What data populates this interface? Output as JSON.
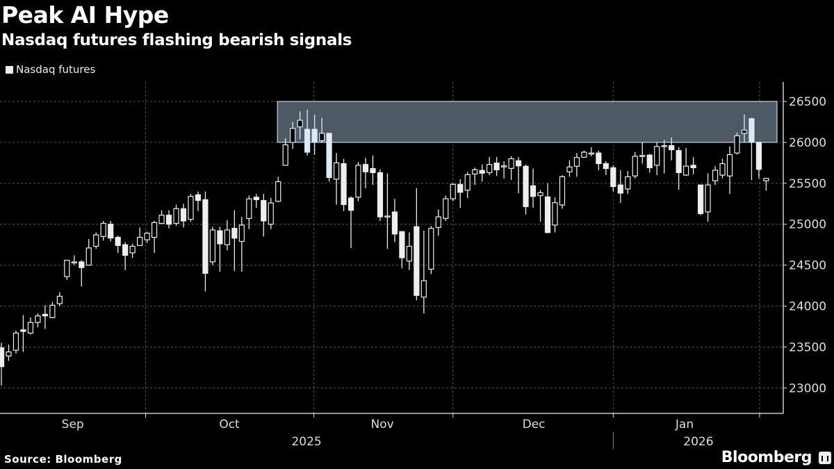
{
  "header": {
    "title": "Peak AI Hype",
    "subtitle": "Nasdaq futures flashing bearish signals"
  },
  "legend": {
    "label": "Nasdaq futures"
  },
  "footer": {
    "source": "Source: Bloomberg",
    "brand": "Bloomberg"
  },
  "colors": {
    "candle": "#eeeeee",
    "highlight": "#4d5a66",
    "highlight_border": "#c9d4de",
    "grid": "#555555"
  },
  "chart_data": {
    "type": "candlestick",
    "title": "Peak AI Hype",
    "subtitle": "Nasdaq futures flashing bearish signals",
    "series_name": "Nasdaq futures",
    "ylim": [
      22800,
      26700
    ],
    "yticks": [
      23000,
      23500,
      24000,
      24500,
      25000,
      25500,
      26000,
      26500
    ],
    "grid": true,
    "legend_position": "top-left",
    "months": [
      {
        "label": "Sep",
        "index": 9.8
      },
      {
        "label": "Oct",
        "index": 31.3
      },
      {
        "label": "Nov",
        "index": 52.3
      },
      {
        "label": "Dec",
        "index": 73.1
      },
      {
        "label": "Jan",
        "index": 93.8
      }
    ],
    "month_boundaries": [
      19.8,
      42.9,
      62.0,
      84.0,
      104.1
    ],
    "years": [
      {
        "label": "2025",
        "index": 41.9
      },
      {
        "label": "2026",
        "index": 95.7
      }
    ],
    "year_boundary": 84.0,
    "highlight": {
      "y": [
        26000,
        26500
      ],
      "from_index": 37.9
    },
    "ohlc_fields": [
      "open",
      "high",
      "low",
      "close"
    ],
    "ohlc": [
      [
        23490,
        23550,
        23030,
        23260
      ],
      [
        23390,
        23530,
        23330,
        23440
      ],
      [
        23460,
        23700,
        23420,
        23670
      ],
      [
        23710,
        23890,
        23440,
        23690
      ],
      [
        23670,
        23860,
        23650,
        23800
      ],
      [
        23800,
        23910,
        23740,
        23880
      ],
      [
        23900,
        24010,
        23720,
        23880
      ],
      [
        23860,
        24050,
        23850,
        24010
      ],
      [
        24030,
        24170,
        24000,
        24120
      ],
      [
        24360,
        24560,
        24320,
        24560
      ],
      [
        24530,
        24620,
        24500,
        24540
      ],
      [
        24540,
        24560,
        24240,
        24470
      ],
      [
        24500,
        24820,
        24500,
        24710
      ],
      [
        24730,
        24900,
        24700,
        24870
      ],
      [
        24850,
        25040,
        24800,
        25010
      ],
      [
        25000,
        25040,
        24790,
        24830
      ],
      [
        24840,
        24860,
        24650,
        24740
      ],
      [
        24750,
        24780,
        24440,
        24620
      ],
      [
        24650,
        24760,
        24590,
        24730
      ],
      [
        24740,
        24960,
        24740,
        24840
      ],
      [
        24810,
        24910,
        24770,
        24890
      ],
      [
        24840,
        25040,
        24650,
        25020
      ],
      [
        25010,
        25170,
        25000,
        25110
      ],
      [
        25110,
        25170,
        24950,
        25000
      ],
      [
        25010,
        25240,
        24980,
        25190
      ],
      [
        25190,
        25250,
        24960,
        25040
      ],
      [
        25060,
        25370,
        25030,
        25340
      ],
      [
        25360,
        25400,
        25160,
        25290
      ],
      [
        25300,
        25400,
        24180,
        24400
      ],
      [
        24540,
        24970,
        24500,
        24930
      ],
      [
        24920,
        24970,
        24420,
        24760
      ],
      [
        24750,
        25050,
        24680,
        24930
      ],
      [
        24950,
        25170,
        24430,
        24830
      ],
      [
        24790,
        25090,
        24420,
        24990
      ],
      [
        25070,
        25350,
        24940,
        25310
      ],
      [
        25330,
        25370,
        25200,
        25300
      ],
      [
        25290,
        25370,
        24850,
        25040
      ],
      [
        25000,
        25320,
        24940,
        25260
      ],
      [
        25280,
        25580,
        25270,
        25520
      ],
      [
        25720,
        26050,
        25720,
        25970
      ],
      [
        26000,
        26250,
        25920,
        26170
      ],
      [
        26190,
        26380,
        26040,
        26270
      ],
      [
        26160,
        26400,
        25840,
        25880
      ],
      [
        26160,
        26340,
        25850,
        26000
      ],
      [
        26020,
        26300,
        26000,
        26110
      ],
      [
        26110,
        26110,
        25520,
        25570
      ],
      [
        25550,
        25870,
        25240,
        25750
      ],
      [
        25740,
        25800,
        25160,
        25240
      ],
      [
        25320,
        25340,
        24710,
        25170
      ],
      [
        25330,
        25760,
        25280,
        25720
      ],
      [
        25730,
        25810,
        25440,
        25640
      ],
      [
        25680,
        25840,
        25480,
        25630
      ],
      [
        25630,
        25670,
        25040,
        25090
      ],
      [
        25100,
        25620,
        24700,
        25100
      ],
      [
        25150,
        25310,
        24780,
        24880
      ],
      [
        24910,
        24910,
        24460,
        24590
      ],
      [
        24550,
        24900,
        24440,
        24730
      ],
      [
        24970,
        25440,
        24070,
        24130
      ],
      [
        24110,
        24920,
        23910,
        24310
      ],
      [
        24450,
        24980,
        24390,
        24950
      ],
      [
        24960,
        25180,
        24860,
        25090
      ],
      [
        25071,
        25350,
        25040,
        25311
      ],
      [
        25311,
        25500,
        25280,
        25487
      ],
      [
        25487,
        25550,
        25200,
        25390
      ],
      [
        25416,
        25640,
        25320,
        25606
      ],
      [
        25614,
        25690,
        25480,
        25665
      ],
      [
        25657,
        25730,
        25520,
        25623
      ],
      [
        25631,
        25820,
        25600,
        25730
      ],
      [
        25747,
        25820,
        25590,
        25665
      ],
      [
        25713,
        25770,
        25560,
        25713
      ],
      [
        25682,
        25830,
        25540,
        25800
      ],
      [
        25776,
        25820,
        25380,
        25713
      ],
      [
        25708,
        25730,
        25120,
        25215
      ],
      [
        25470,
        25680,
        25200,
        25340
      ],
      [
        25350,
        25420,
        25030,
        25385
      ],
      [
        25334,
        25500,
        24890,
        24898
      ],
      [
        24990,
        25330,
        24900,
        25263
      ],
      [
        25235,
        25600,
        25190,
        25580
      ],
      [
        25640,
        25780,
        25580,
        25700
      ],
      [
        25708,
        25870,
        25580,
        25815
      ],
      [
        25818,
        25900,
        25820,
        25880
      ],
      [
        25870,
        25940,
        25830,
        25870
      ],
      [
        25870,
        25900,
        25660,
        25740
      ],
      [
        25740,
        25770,
        25600,
        25680
      ],
      [
        25690,
        25720,
        25400,
        25460
      ],
      [
        25480,
        25660,
        25260,
        25380
      ],
      [
        25430,
        25650,
        25370,
        25580
      ],
      [
        25590,
        25880,
        25560,
        25830
      ],
      [
        25840,
        26000,
        25740,
        25840
      ],
      [
        25845,
        25860,
        25630,
        25690
      ],
      [
        25720,
        26000,
        25600,
        25950
      ],
      [
        25960,
        26030,
        25620,
        25960
      ],
      [
        25960,
        26060,
        25780,
        25910
      ],
      [
        25900,
        25940,
        25420,
        25630
      ],
      [
        25600,
        25930,
        25590,
        25710
      ],
      [
        25720,
        25820,
        25610,
        25690
      ],
      [
        25480,
        25480,
        25110,
        25130
      ],
      [
        25150,
        25620,
        25030,
        25480
      ],
      [
        25530,
        25710,
        25480,
        25660
      ],
      [
        25600,
        25800,
        25560,
        25740
      ],
      [
        25590,
        25950,
        25370,
        25850
      ],
      [
        25870,
        26120,
        25850,
        26080
      ],
      [
        26110,
        26340,
        26000,
        26150
      ],
      [
        26290,
        26300,
        25540,
        26000
      ],
      [
        26000,
        26000,
        25560,
        25670
      ],
      [
        25530,
        25560,
        25410,
        25560
      ]
    ]
  }
}
